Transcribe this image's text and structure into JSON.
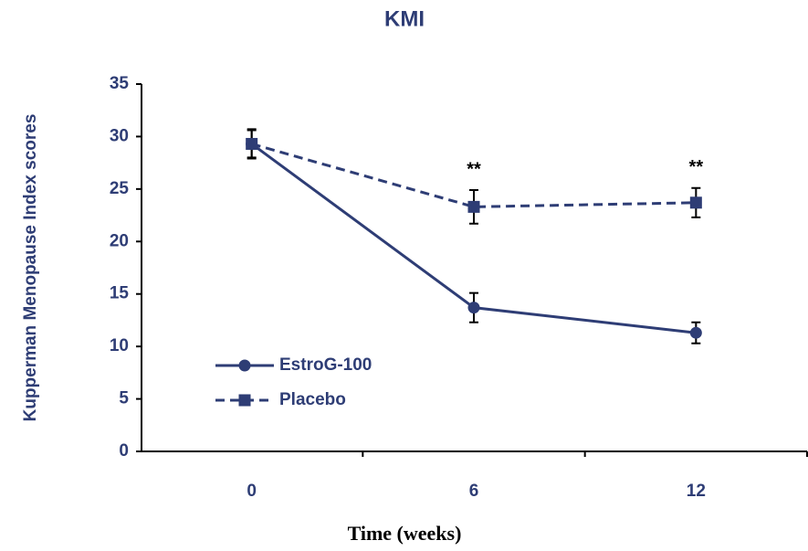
{
  "chart_data": {
    "type": "line",
    "title": "KMI",
    "x_label": "Time (weeks)",
    "y_label": "Kupperman Menopause Index scores",
    "categories": [
      "0",
      "6",
      "12"
    ],
    "series": [
      {
        "name": "EstroG-100",
        "color": "#2e3d75",
        "line_style": "solid",
        "marker": "circle",
        "values": [
          29.3,
          13.7,
          11.3
        ],
        "errors": [
          1.3,
          1.4,
          1.0
        ]
      },
      {
        "name": "Placebo",
        "color": "#2e3d75",
        "line_style": "dashed",
        "marker": "square",
        "values": [
          29.3,
          23.3,
          23.7
        ],
        "errors": [
          1.4,
          1.6,
          1.4
        ]
      }
    ],
    "annotations": [
      {
        "x": "6",
        "text": "**"
      },
      {
        "x": "12",
        "text": "**"
      }
    ],
    "ylim": [
      0,
      35
    ],
    "yticks": [
      0,
      5,
      10,
      15,
      20,
      25,
      30,
      35
    ],
    "legend": "lower left"
  }
}
